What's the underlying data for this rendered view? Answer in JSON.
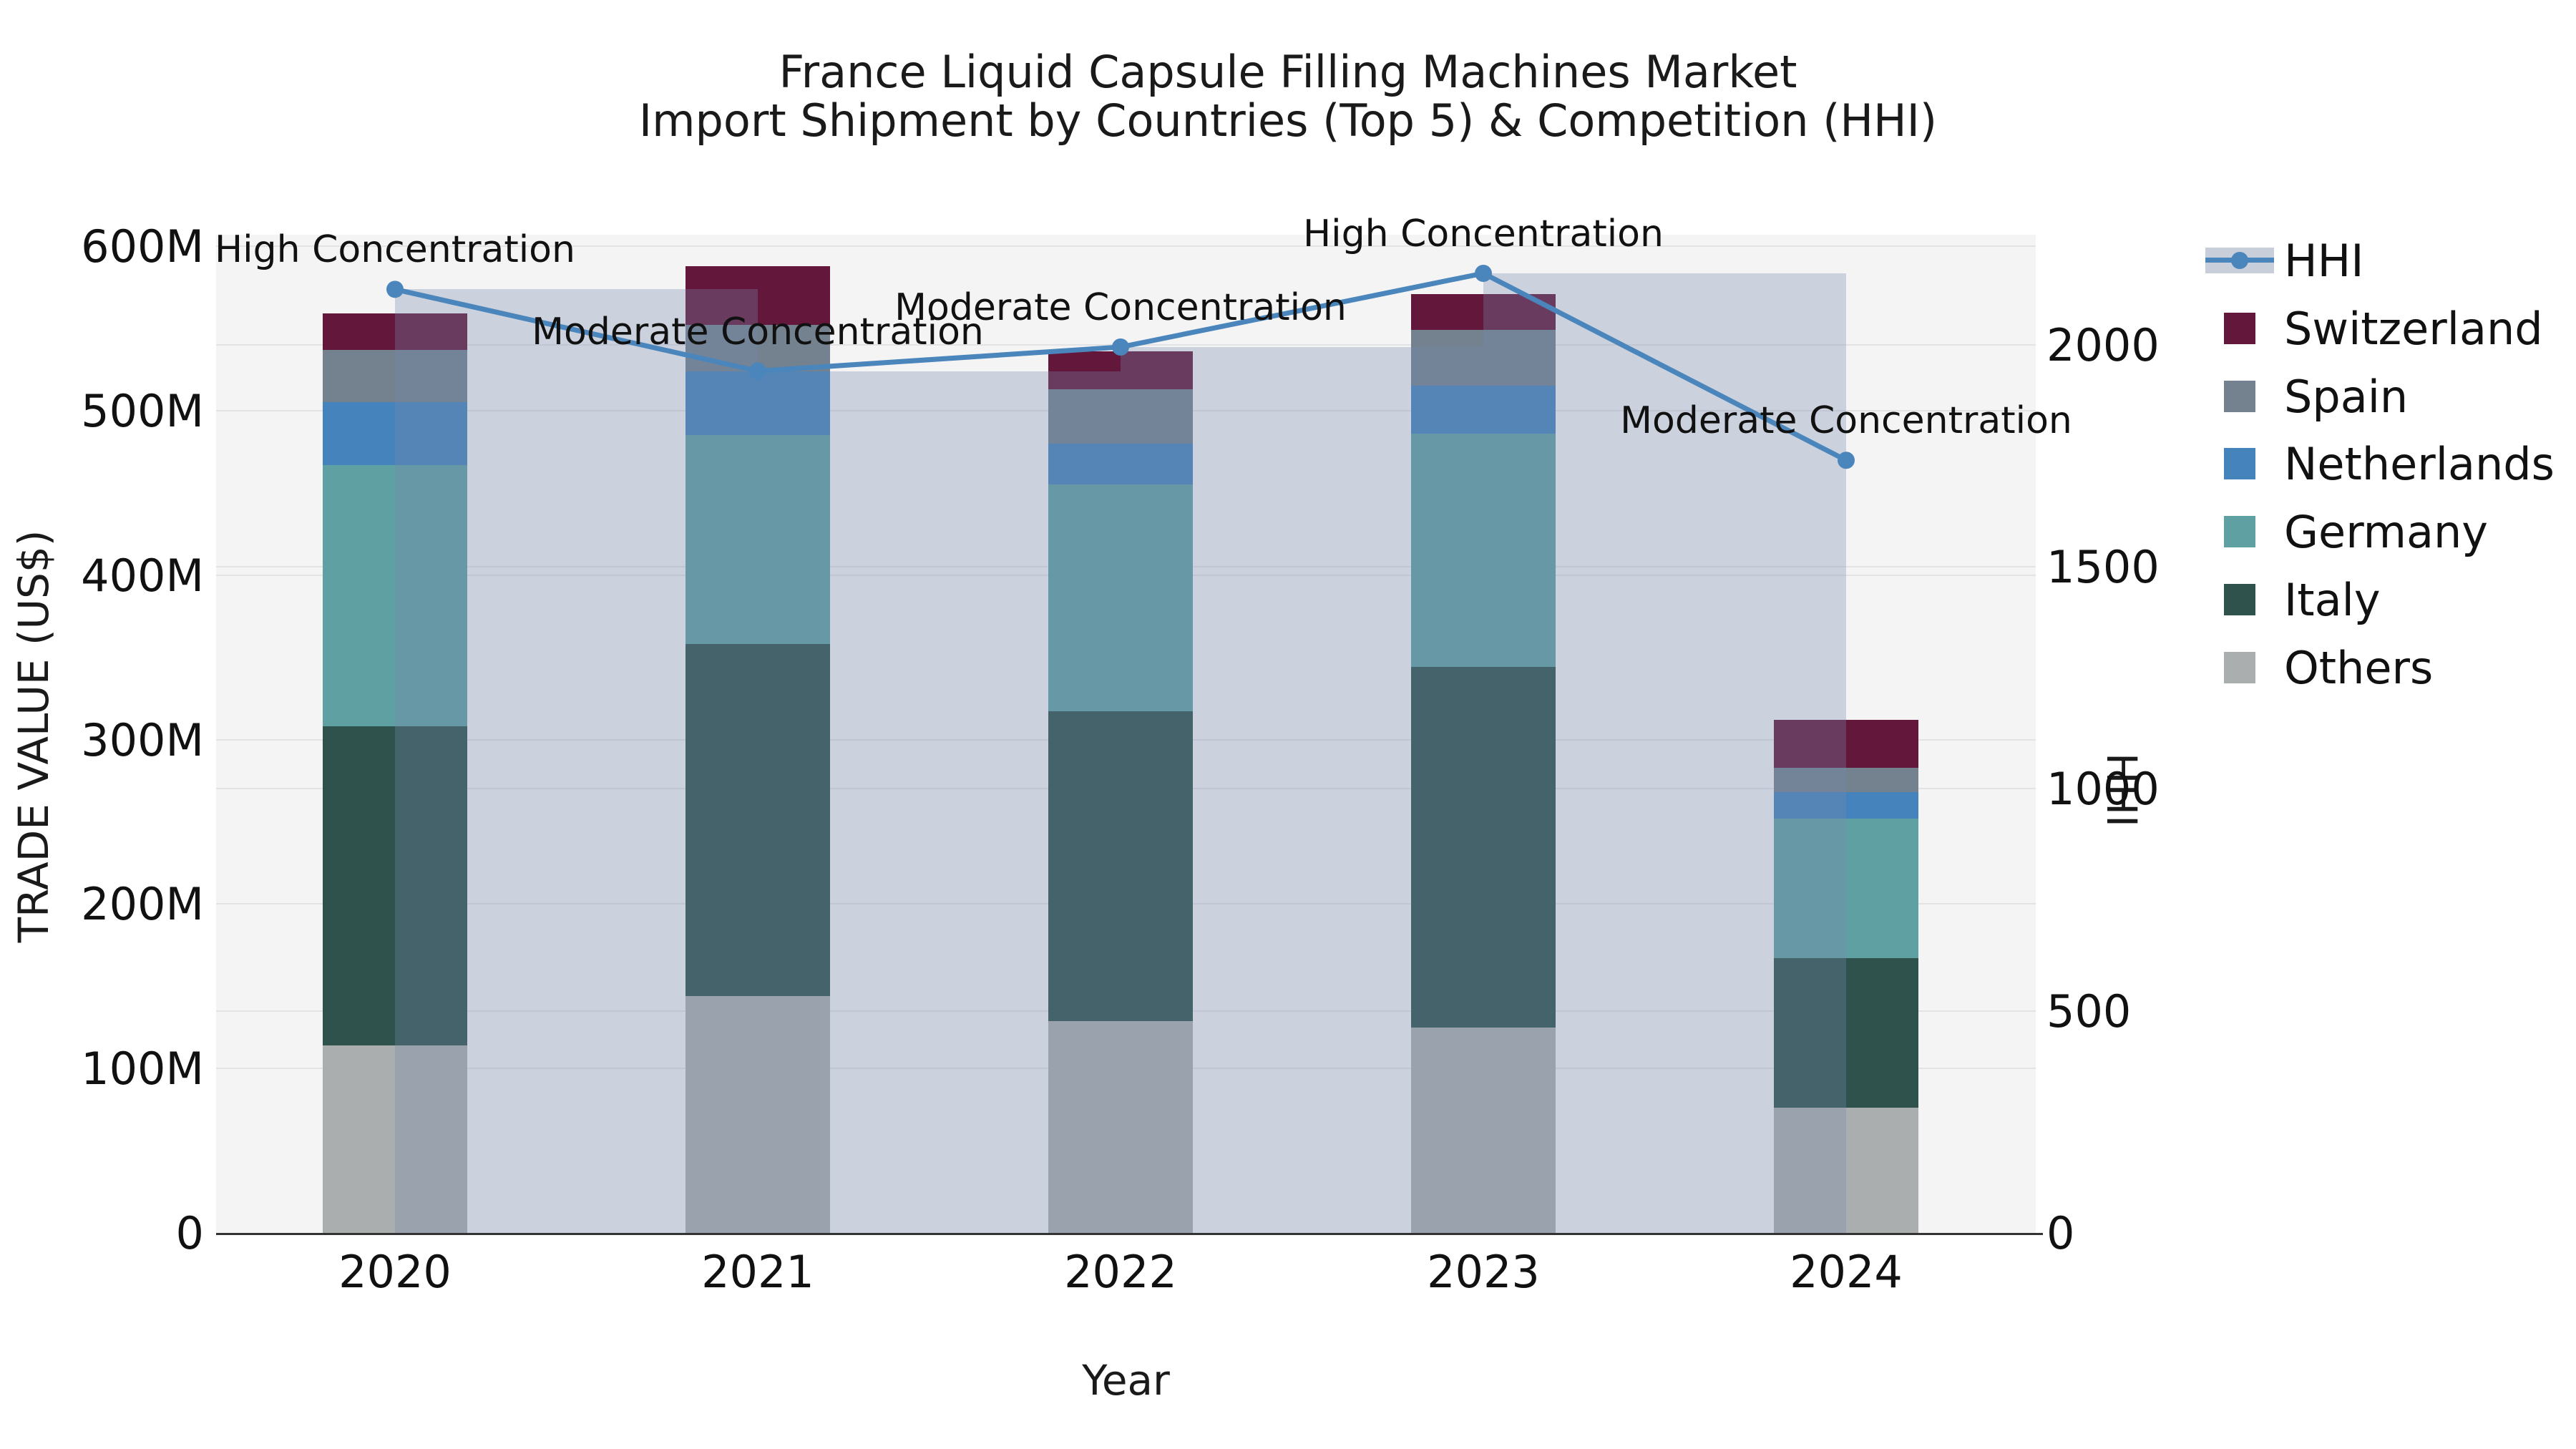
{
  "title": {
    "line1": "France Liquid Capsule Filling Machines Market",
    "line2": "Import Shipment by Countries (Top 5) & Competition (HHI)"
  },
  "axes": {
    "x_title": "Year",
    "left_title": "TRADE VALUE (US$)",
    "right_title": "HHI",
    "left_tick_labels": [
      "0",
      "100M",
      "200M",
      "300M",
      "400M",
      "500M",
      "600M"
    ],
    "left_tick_values": [
      0,
      100,
      200,
      300,
      400,
      500,
      600
    ],
    "right_tick_labels": [
      "0",
      "500",
      "1000",
      "1500",
      "2000"
    ],
    "right_tick_values": [
      0,
      500,
      1000,
      1500,
      2000
    ]
  },
  "legend": {
    "items": [
      {
        "label": "HHI",
        "kind": "line",
        "color_key": "hhi_line"
      },
      {
        "label": "Switzerland",
        "kind": "swatch",
        "color_key": "switzerland"
      },
      {
        "label": "Spain",
        "kind": "swatch",
        "color_key": "spain"
      },
      {
        "label": "Netherlands",
        "kind": "swatch",
        "color_key": "netherlands"
      },
      {
        "label": "Germany",
        "kind": "swatch",
        "color_key": "germany"
      },
      {
        "label": "Italy",
        "kind": "swatch",
        "color_key": "italy"
      },
      {
        "label": "Others",
        "kind": "swatch",
        "color_key": "others"
      }
    ]
  },
  "chart_data": {
    "type": "bar+line",
    "title": "France Liquid Capsule Filling Machines Market\nImport Shipment by Countries (Top 5) & Competition (HHI)",
    "categories": [
      "2020",
      "2021",
      "2022",
      "2023",
      "2024"
    ],
    "stack_order_bottom_to_top": [
      "Others",
      "Italy",
      "Germany",
      "Netherlands",
      "Spain",
      "Switzerland"
    ],
    "series": [
      {
        "name": "Others",
        "color_key": "others",
        "values": [
          114,
          144,
          129,
          125,
          76
        ]
      },
      {
        "name": "Italy",
        "color_key": "italy",
        "values": [
          194,
          214,
          188,
          219,
          91
        ]
      },
      {
        "name": "Germany",
        "color_key": "germany",
        "values": [
          159,
          127,
          138,
          142,
          85
        ]
      },
      {
        "name": "Netherlands",
        "color_key": "netherlands",
        "values": [
          38,
          39,
          25,
          29,
          16
        ]
      },
      {
        "name": "Spain",
        "color_key": "spain",
        "values": [
          32,
          28,
          33,
          34,
          15
        ]
      },
      {
        "name": "Switzerland",
        "color_key": "switzerland",
        "values": [
          22,
          36,
          23,
          22,
          29
        ]
      }
    ],
    "bar_totals": [
      559,
      588,
      536,
      571,
      312
    ],
    "line_series": {
      "name": "HHI",
      "axis": "right",
      "values": [
        2125,
        1941,
        1995,
        2161,
        1740
      ],
      "style": "step-post translucent area + line with round markers"
    },
    "annotations": [
      {
        "year": "2020",
        "text": "High Concentration"
      },
      {
        "year": "2021",
        "text": "Moderate Concentration"
      },
      {
        "year": "2022",
        "text": "Moderate Concentration"
      },
      {
        "year": "2023",
        "text": "High Concentration"
      },
      {
        "year": "2024",
        "text": "Moderate Concentration"
      }
    ],
    "xlabel": "Year",
    "ylabel_left": "TRADE VALUE (US$)",
    "ylabel_right": "HHI",
    "units_left": "M US$",
    "ylim_left": [
      0,
      607
    ],
    "ylim_right": [
      0,
      2248
    ],
    "grid": "horizontal, both axes tick levels"
  },
  "colors": {
    "switzerland": "#63173B",
    "spain": "#74828F",
    "netherlands": "#4483BB",
    "germany": "#5FA0A2",
    "italy": "#2F524D",
    "others": "#AAAEAF",
    "hhi_line": "#4A86BC",
    "hhi_fill": "rgba(119,137,170,0.32)",
    "hhi_legend_band": "#C9CFDA",
    "plot_bg": "#F4F4F5",
    "grid": "#E3E3E6",
    "axis_line": "#333333",
    "text": "#1A1A1A"
  }
}
